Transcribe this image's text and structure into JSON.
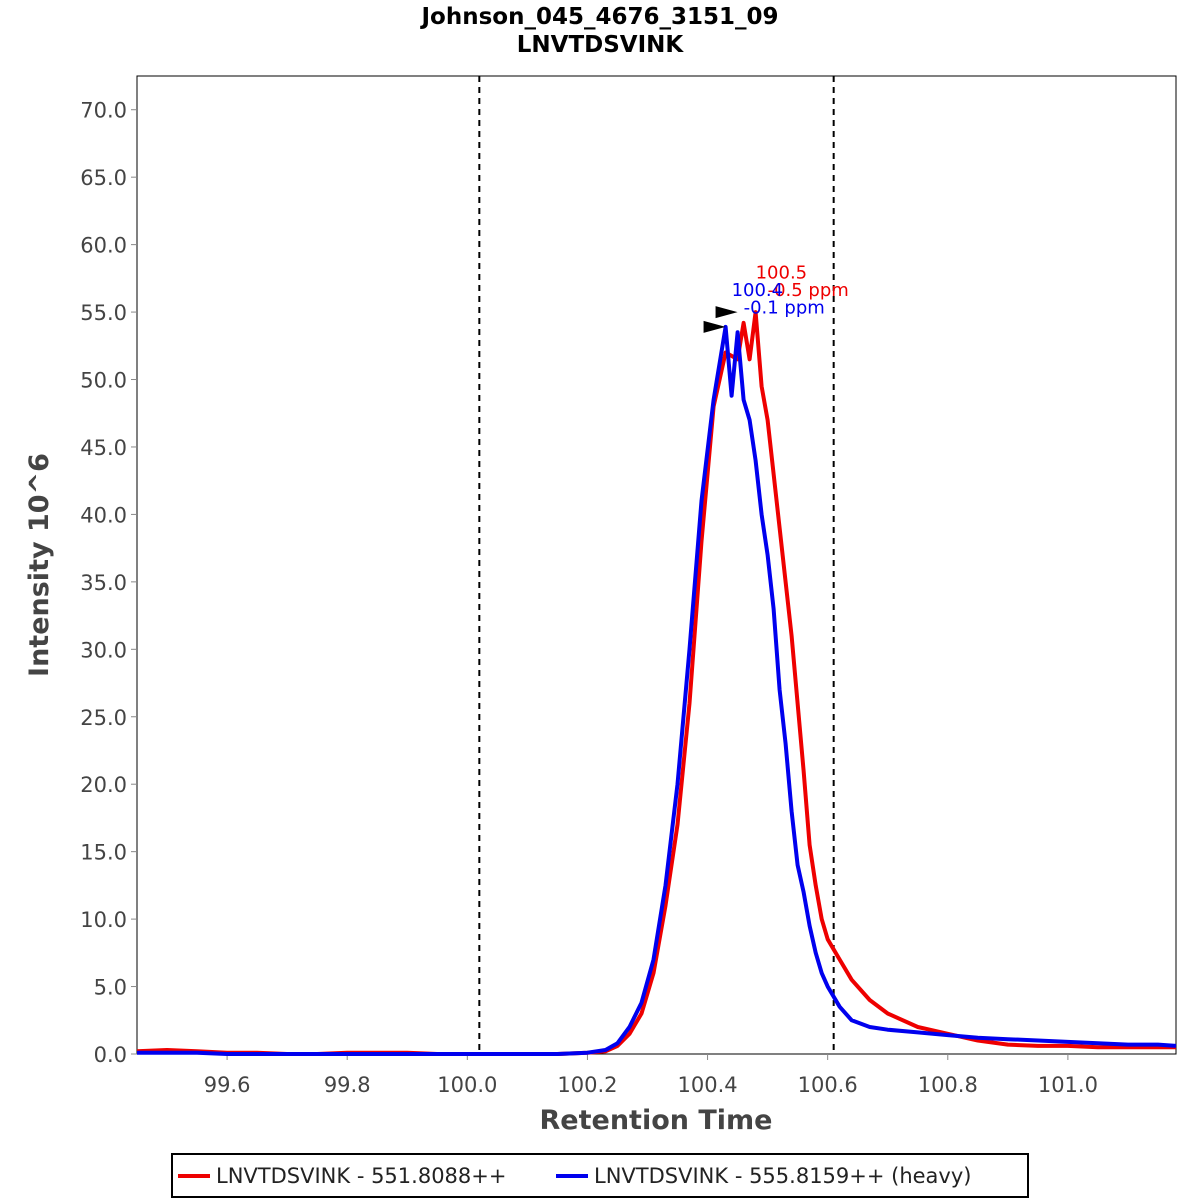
{
  "chart_data": {
    "type": "line",
    "title": "Johnson_045_4676_3151_09",
    "subtitle": "LNVTDSVINK",
    "xlabel": "Retention Time",
    "ylabel": "Intensity 10^6",
    "xlim": [
      99.45,
      101.18
    ],
    "ylim": [
      0,
      72.5
    ],
    "x_ticks": [
      99.6,
      99.8,
      100.0,
      100.2,
      100.4,
      100.6,
      100.8,
      101.0
    ],
    "x_tick_labels": [
      "99.6",
      "99.8",
      "100.0",
      "100.2",
      "100.4",
      "100.6",
      "100.8",
      "101.0"
    ],
    "y_ticks": [
      0,
      5,
      10,
      15,
      20,
      25,
      30,
      35,
      40,
      45,
      50,
      55,
      60,
      65,
      70
    ],
    "y_tick_labels": [
      "0.0",
      "5.0",
      "10.0",
      "15.0",
      "20.0",
      "25.0",
      "30.0",
      "35.0",
      "40.0",
      "45.0",
      "50.0",
      "55.0",
      "60.0",
      "65.0",
      "70.0"
    ],
    "grid": false,
    "legend_position": "bottom",
    "boundaries": [
      100.02,
      100.61
    ],
    "series": [
      {
        "name": "LNVTDSVINK - 551.8088++",
        "color": "#ee0000",
        "x": [
          99.45,
          99.5,
          99.55,
          99.6,
          99.65,
          99.7,
          99.75,
          99.8,
          99.85,
          99.9,
          99.95,
          100.0,
          100.05,
          100.1,
          100.15,
          100.2,
          100.23,
          100.25,
          100.27,
          100.29,
          100.31,
          100.33,
          100.35,
          100.37,
          100.39,
          100.41,
          100.43,
          100.45,
          100.46,
          100.47,
          100.48,
          100.49,
          100.5,
          100.51,
          100.52,
          100.53,
          100.54,
          100.55,
          100.56,
          100.57,
          100.58,
          100.59,
          100.6,
          100.62,
          100.64,
          100.67,
          100.7,
          100.75,
          100.8,
          100.85,
          100.9,
          100.95,
          101.0,
          101.05,
          101.1,
          101.15,
          101.18
        ],
        "y": [
          0.2,
          0.3,
          0.2,
          0.1,
          0.1,
          0.0,
          0.0,
          0.1,
          0.1,
          0.1,
          0.0,
          0.0,
          0.0,
          0.0,
          0.0,
          0.1,
          0.2,
          0.6,
          1.5,
          3.0,
          6.0,
          11.0,
          17.0,
          26.0,
          38.0,
          48.0,
          52.0,
          51.5,
          54.2,
          51.5,
          55.0,
          49.5,
          47.0,
          43.0,
          39.0,
          35.0,
          31.0,
          26.0,
          21.0,
          15.5,
          12.5,
          10.0,
          8.5,
          7.0,
          5.5,
          4.0,
          3.0,
          2.0,
          1.5,
          1.0,
          0.7,
          0.6,
          0.6,
          0.5,
          0.5,
          0.5,
          0.5
        ]
      },
      {
        "name": "LNVTDSVINK - 555.8159++ (heavy)",
        "color": "#0000ee",
        "x": [
          99.45,
          99.5,
          99.55,
          99.6,
          99.65,
          99.7,
          99.75,
          99.8,
          99.85,
          99.9,
          99.95,
          100.0,
          100.05,
          100.1,
          100.15,
          100.2,
          100.23,
          100.25,
          100.27,
          100.29,
          100.31,
          100.33,
          100.35,
          100.37,
          100.39,
          100.41,
          100.43,
          100.44,
          100.45,
          100.46,
          100.47,
          100.48,
          100.49,
          100.5,
          100.51,
          100.52,
          100.53,
          100.54,
          100.55,
          100.56,
          100.57,
          100.58,
          100.59,
          100.6,
          100.62,
          100.64,
          100.67,
          100.7,
          100.75,
          100.8,
          100.85,
          100.9,
          100.95,
          101.0,
          101.05,
          101.1,
          101.15,
          101.18
        ],
        "y": [
          0.1,
          0.1,
          0.1,
          0.0,
          0.0,
          0.0,
          0.0,
          0.0,
          0.0,
          0.0,
          0.0,
          0.0,
          0.0,
          0.0,
          0.0,
          0.1,
          0.3,
          0.8,
          2.0,
          3.8,
          7.0,
          12.5,
          20.0,
          30.0,
          41.0,
          48.5,
          53.9,
          48.8,
          53.5,
          48.5,
          47.0,
          44.0,
          40.0,
          37.0,
          33.0,
          27.0,
          23.0,
          18.0,
          14.0,
          12.0,
          9.5,
          7.5,
          6.0,
          5.0,
          3.5,
          2.5,
          2.0,
          1.8,
          1.6,
          1.4,
          1.2,
          1.1,
          1.0,
          0.9,
          0.8,
          0.7,
          0.7,
          0.6
        ]
      }
    ],
    "annotations": [
      {
        "text": "100.5",
        "color": "#ee0000",
        "x": 100.48,
        "y": 57.5
      },
      {
        "text": "-0.5 ppm",
        "color": "#ee0000",
        "x": 100.5,
        "y": 56.2
      },
      {
        "text": "100.4",
        "color": "#0000ee",
        "x": 100.44,
        "y": 56.2
      },
      {
        "text": "-0.1 ppm",
        "color": "#0000ee",
        "x": 100.46,
        "y": 54.9
      }
    ],
    "markers": [
      {
        "type": "arrow",
        "color": "#000000",
        "x": 100.43,
        "y": 53.9
      },
      {
        "type": "arrow",
        "color": "#000000",
        "x": 100.45,
        "y": 55.0
      }
    ]
  }
}
